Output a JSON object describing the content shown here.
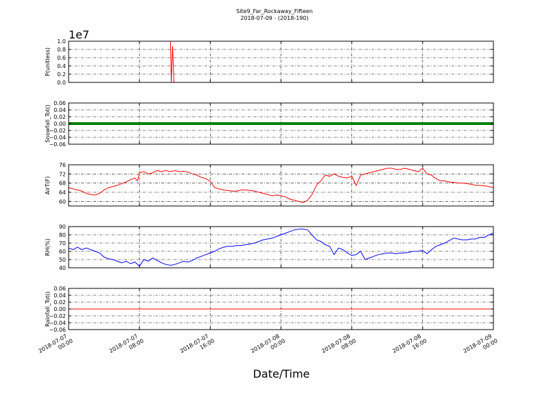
{
  "figure": {
    "title_line1": "Site9_Far_Rockaway_Fifteen",
    "title_line2": "2018-07-09 - (2018-190)",
    "xlabel": "Date/Time"
  },
  "chart_data": [
    {
      "type": "line",
      "ylabel": "P(unitless)",
      "offset_text": "1e7",
      "color": "#ff0000",
      "ylim": [
        0,
        1.0
      ],
      "yticks": [
        "0.0",
        "0.2",
        "0.4",
        "0.6",
        "0.8",
        "1.0"
      ],
      "ytick_values": [
        0,
        0.2,
        0.4,
        0.6,
        0.8,
        1.0
      ],
      "xlim_hours": [
        0,
        48
      ],
      "grid": true,
      "series": [
        {
          "x_hours": [
            0,
            11.5,
            11.6,
            11.75,
            11.9,
            12.0,
            12.2,
            48
          ],
          "values": [
            null,
            1.05,
            0.0,
            0.88,
            0.0,
            0.0,
            0.0,
            0.0
          ]
        }
      ]
    },
    {
      "type": "line",
      "ylabel": "Snowfall_Tot()",
      "color": "#008000",
      "ylim": [
        -0.06,
        0.06
      ],
      "yticks": [
        "−0.06",
        "−0.04",
        "−0.02",
        "0.00",
        "0.02",
        "0.04",
        "0.06"
      ],
      "ytick_values": [
        -0.06,
        -0.04,
        -0.02,
        0,
        0.02,
        0.04,
        0.06
      ],
      "xlim_hours": [
        0,
        48
      ],
      "grid": true,
      "series": [
        {
          "x_hours": [
            0,
            48
          ],
          "values": [
            0,
            0
          ]
        }
      ]
    },
    {
      "type": "line",
      "ylabel": "AirT(F)",
      "color": "#ff0000",
      "ylim": [
        58,
        76
      ],
      "yticks": [
        "60",
        "64",
        "68",
        "72",
        "76"
      ],
      "ytick_values": [
        60,
        64,
        68,
        72,
        76
      ],
      "xlim_hours": [
        0,
        48
      ],
      "grid": true,
      "series": [
        {
          "x_hours": [
            0,
            0.5,
            1,
            1.5,
            2,
            2.5,
            3,
            3.5,
            4,
            4.5,
            5,
            5.5,
            6,
            6.5,
            7,
            7.5,
            7.8,
            8,
            8.5,
            9,
            9.5,
            10,
            10.5,
            11,
            11.5,
            12,
            12.5,
            13,
            13.5,
            14,
            14.5,
            15,
            15.5,
            16,
            16.5,
            17,
            17.5,
            18,
            18.5,
            19,
            19.5,
            20,
            20.5,
            21,
            21.5,
            22,
            22.5,
            23,
            23.5,
            24,
            24.5,
            25,
            25.5,
            26,
            26.5,
            27,
            27.5,
            28,
            28.5,
            29,
            29.5,
            30,
            30.5,
            31,
            31.5,
            32,
            32.5,
            33,
            33.5,
            34,
            34.5,
            35,
            35.5,
            36,
            36.5,
            37,
            37.5,
            38,
            38.5,
            39,
            39.5,
            40,
            40.5,
            41,
            41.5,
            42,
            42.5,
            43,
            43.5,
            44,
            44.5,
            45,
            45.5,
            46,
            46.5,
            47,
            47.5,
            48
          ],
          "values": [
            66,
            65.5,
            65,
            64.5,
            63.5,
            63,
            62.8,
            63.5,
            65,
            66,
            66.5,
            67,
            67.8,
            68.5,
            69.5,
            70.2,
            69,
            72.5,
            73,
            72,
            72.5,
            73.5,
            73,
            73.5,
            73,
            73.5,
            73,
            73.2,
            72.8,
            72,
            71.5,
            70.5,
            70,
            68.8,
            66,
            65.5,
            65,
            64.8,
            64.5,
            64.5,
            65,
            65,
            64.8,
            64.5,
            64,
            63.5,
            63,
            62.5,
            62.8,
            62.5,
            62,
            61,
            60.5,
            60,
            59.5,
            60.5,
            63,
            67,
            69,
            71.5,
            71,
            72,
            71,
            70.5,
            70.3,
            71,
            67,
            71.5,
            72,
            72.5,
            73,
            73.5,
            74,
            74.5,
            74.5,
            74,
            74,
            74.5,
            74,
            73.5,
            73,
            74.5,
            72,
            71.5,
            70,
            69,
            69,
            68.5,
            68.3,
            68,
            68,
            67.8,
            67.5,
            67,
            67,
            66.8,
            66.5,
            66
          ]
        }
      ]
    },
    {
      "type": "line",
      "ylabel": "RH(%)",
      "color": "#0000ff",
      "ylim": [
        40,
        90
      ],
      "yticks": [
        "40",
        "50",
        "60",
        "70",
        "80",
        "90"
      ],
      "ytick_values": [
        40,
        50,
        60,
        70,
        80,
        90
      ],
      "xlim_hours": [
        0,
        48
      ],
      "grid": true,
      "series": [
        {
          "x_hours": [
            0,
            0.5,
            1,
            1.5,
            2,
            2.5,
            3,
            3.5,
            4,
            4.5,
            5,
            5.5,
            6,
            6.5,
            7,
            7.5,
            8,
            8.5,
            9,
            9.5,
            10,
            10.5,
            11,
            11.5,
            12,
            12.5,
            13,
            13.5,
            14,
            14.5,
            15,
            15.5,
            16,
            16.5,
            17,
            17.5,
            18,
            18.5,
            19,
            19.5,
            20,
            20.5,
            21,
            21.5,
            22,
            22.5,
            23,
            23.5,
            24,
            24.5,
            25,
            25.5,
            26,
            26.5,
            27,
            27.5,
            28,
            28.5,
            29,
            29.5,
            30,
            30.5,
            31,
            31.5,
            32,
            32.5,
            33,
            33.5,
            34,
            34.5,
            35,
            35.5,
            36,
            36.5,
            37,
            37.5,
            38,
            38.5,
            39,
            39.5,
            40,
            40.5,
            41,
            41.5,
            42,
            42.5,
            43,
            43.5,
            44,
            44.5,
            45,
            45.5,
            46,
            46.5,
            47,
            47.5,
            48
          ],
          "values": [
            64,
            62,
            65,
            62,
            64,
            62,
            60,
            58,
            53,
            51,
            50,
            48,
            46,
            48,
            45,
            47,
            42,
            50,
            48,
            52,
            49,
            46,
            44,
            43,
            44,
            46,
            48,
            47,
            49,
            52,
            54,
            56,
            58,
            60,
            63,
            65,
            66,
            66,
            67,
            67,
            68,
            69,
            70,
            72,
            74,
            75,
            76,
            78,
            80,
            82,
            84,
            86,
            87,
            87,
            86,
            80,
            74,
            72,
            68,
            66,
            56,
            64,
            62,
            58,
            55,
            56,
            60,
            50,
            52,
            54,
            56,
            57,
            58,
            58,
            57,
            58,
            58,
            59,
            60,
            60,
            61,
            57,
            62,
            66,
            68,
            70,
            73,
            76,
            75,
            74,
            74,
            75,
            75,
            77,
            77,
            80,
            82
          ]
        }
      ]
    },
    {
      "type": "line",
      "ylabel": "Rainfall_Tot()",
      "color": "#ff0000",
      "ylim": [
        -0.06,
        0.06
      ],
      "yticks": [
        "−0.06",
        "−0.04",
        "−0.02",
        "0.00",
        "0.02",
        "0.04",
        "0.06"
      ],
      "ytick_values": [
        -0.06,
        -0.04,
        -0.02,
        0,
        0.02,
        0.04,
        0.06
      ],
      "xlim_hours": [
        0,
        48
      ],
      "grid": true,
      "series": [
        {
          "x_hours": [
            0,
            48
          ],
          "values": [
            0,
            0
          ]
        }
      ]
    }
  ],
  "x_axis": {
    "tick_hours": [
      0,
      8,
      16,
      24,
      32,
      40,
      48
    ],
    "tick_labels": [
      [
        "2018-07-07",
        "00:00"
      ],
      [
        "2018-07-07",
        "08:00"
      ],
      [
        "2018-07-07",
        "16:00"
      ],
      [
        "2018-07-08",
        "00:00"
      ],
      [
        "2018-07-08",
        "08:00"
      ],
      [
        "2018-07-08",
        "16:00"
      ],
      [
        "2018-07-09",
        "00:00"
      ]
    ]
  }
}
